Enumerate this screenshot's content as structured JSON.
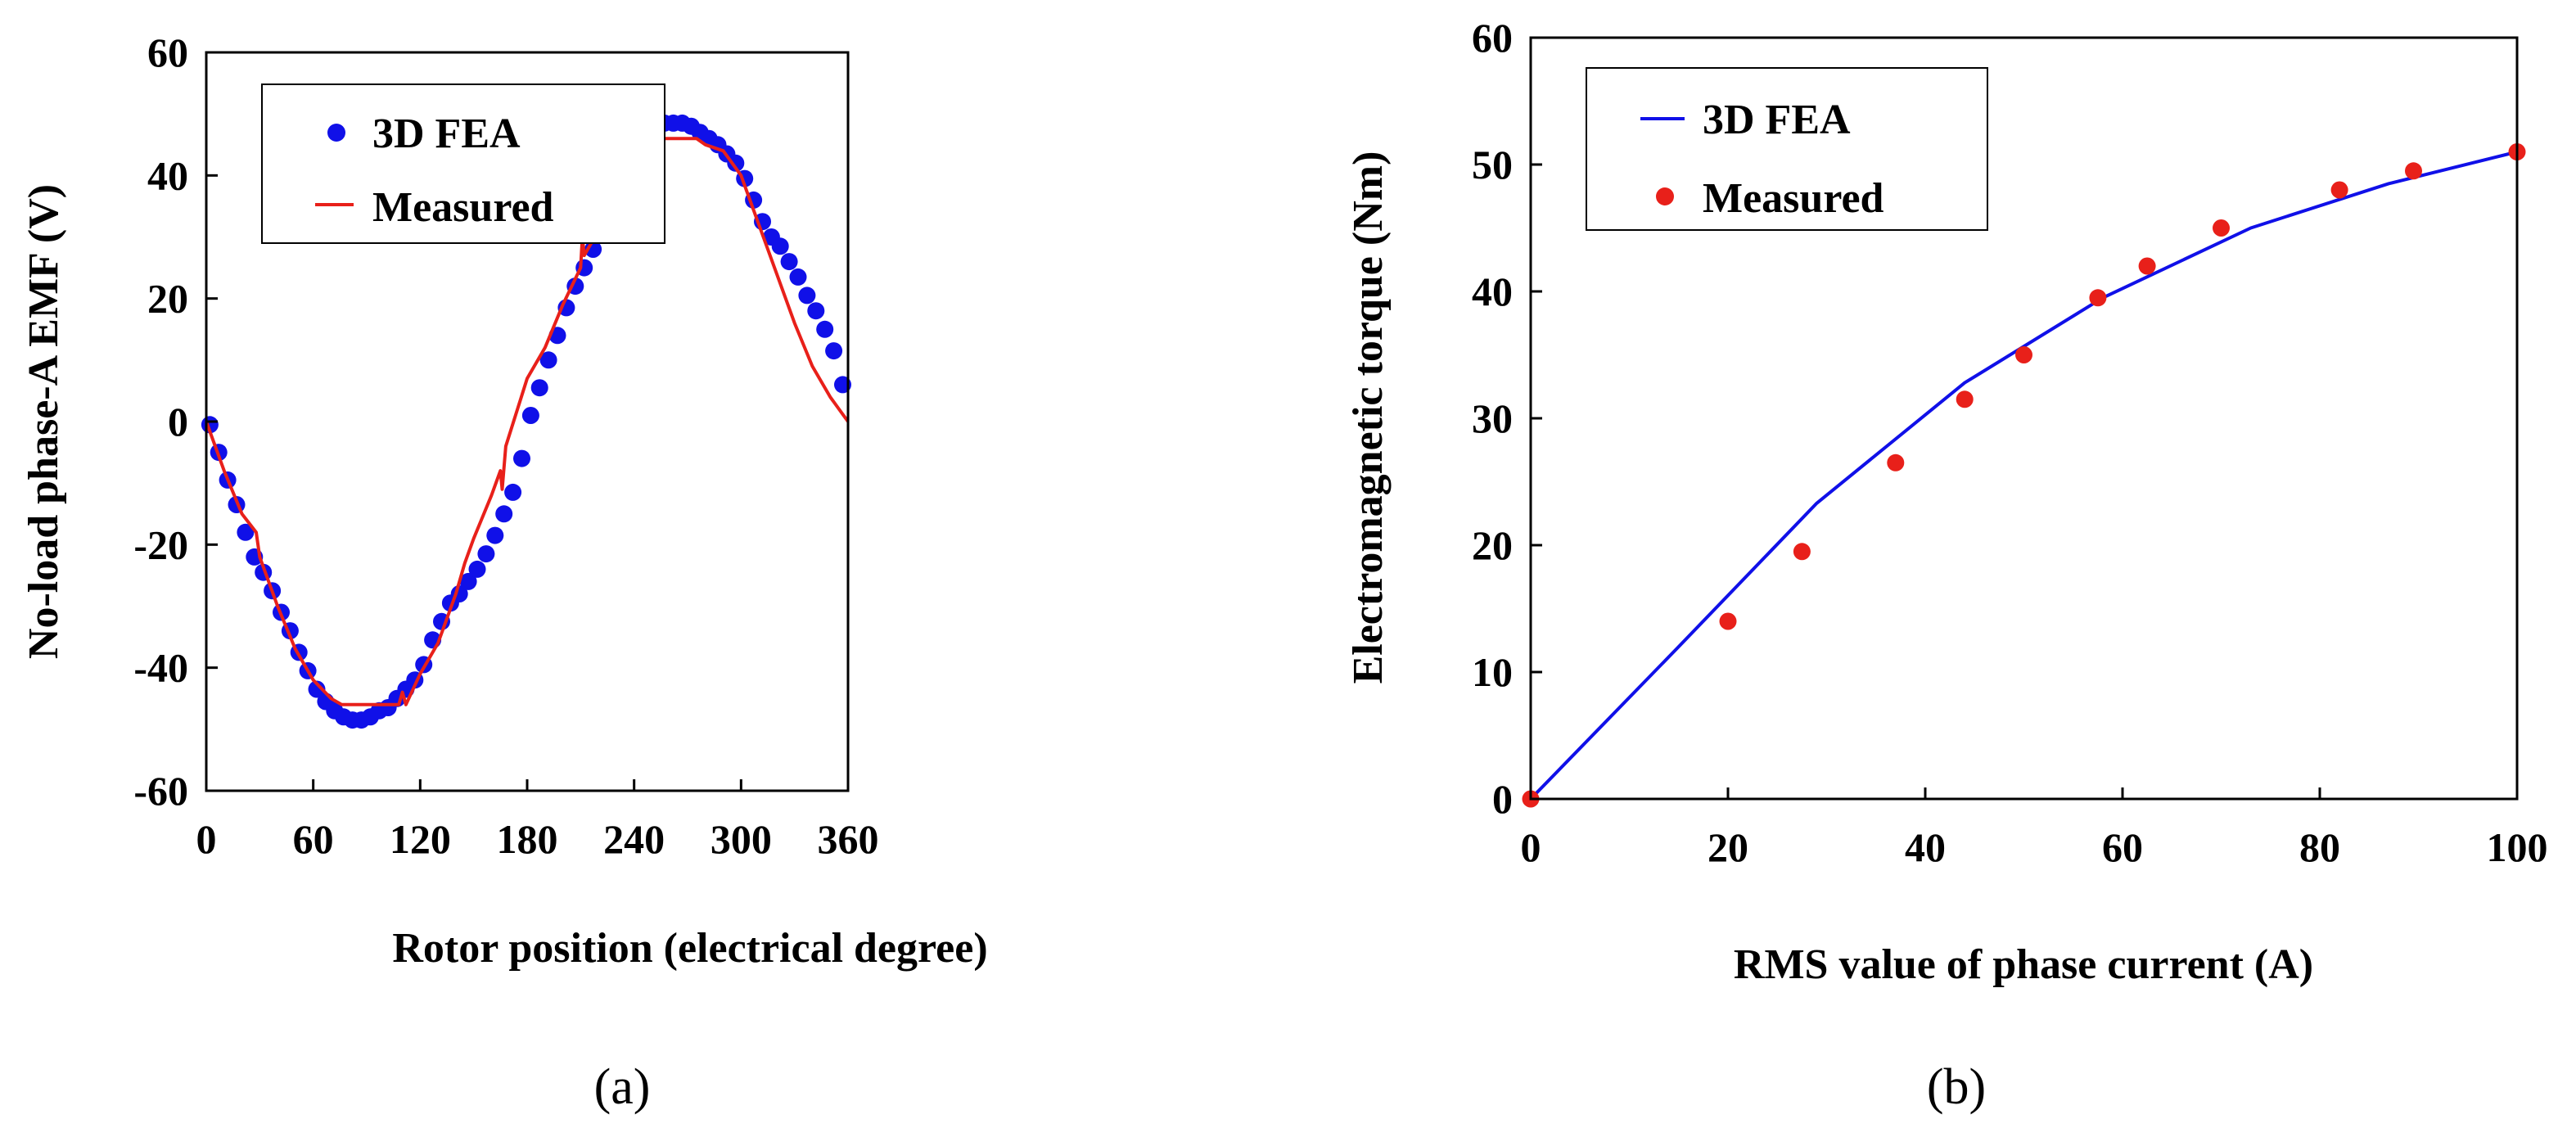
{
  "chart_data": [
    {
      "type": "line",
      "panel_label": "(a)",
      "xlabel": "Rotor position (electrical degree)",
      "ylabel": "No-load phase-A EMF (V)",
      "xlim": [
        0,
        360
      ],
      "ylim": [
        -60,
        60
      ],
      "xticks": [
        0,
        60,
        120,
        180,
        240,
        300,
        360
      ],
      "xtick_labels": [
        "0",
        "60",
        "120",
        "180",
        "240",
        "300",
        "360"
      ],
      "yticks": [
        -60,
        -40,
        -20,
        0,
        20,
        40,
        60
      ],
      "ytick_labels": [
        "-60",
        "-40",
        "-20",
        "0",
        "20",
        "40",
        "60"
      ],
      "grid": false,
      "legend_position": "top-left",
      "series": [
        {
          "name": "3D FEA",
          "style": "markers",
          "color": "#1010E8",
          "x": [
            2,
            7,
            12,
            17,
            22,
            27,
            32,
            37,
            42,
            47,
            52,
            57,
            62,
            67,
            72,
            77,
            82,
            87,
            92,
            97,
            102,
            107,
            112,
            117,
            122,
            127,
            132,
            137,
            142,
            147,
            152,
            157,
            162,
            167,
            172,
            177,
            182,
            187,
            192,
            197,
            202,
            207,
            212,
            217,
            222,
            227,
            232,
            237,
            242,
            247,
            252,
            257,
            262,
            267,
            272,
            277,
            282,
            287,
            292,
            297,
            302,
            307,
            312,
            317,
            322,
            327,
            332,
            337,
            342,
            347,
            352,
            357
          ],
          "y": [
            -0.5,
            -5,
            -9.5,
            -13.5,
            -18,
            -22,
            -24.5,
            -27.5,
            -31,
            -34,
            -37.5,
            -40.5,
            -43.5,
            -45.5,
            -47,
            -48,
            -48.5,
            -48.5,
            -48,
            -47,
            -46.5,
            -45,
            -43.5,
            -42,
            -39.5,
            -35.5,
            -32.5,
            -29.5,
            -28,
            -26,
            -24,
            -21.5,
            -18.5,
            -15,
            -11.5,
            -6,
            1,
            5.5,
            10,
            14,
            18.5,
            22,
            25,
            28,
            31,
            34.5,
            37.5,
            40.5,
            43.5,
            45.5,
            47,
            48.5,
            48.5,
            48.5,
            48,
            47,
            46,
            45,
            43.5,
            42,
            39.5,
            36,
            32.5,
            30,
            28.5,
            26,
            23.5,
            20.5,
            18,
            15,
            11.5,
            6
          ]
        },
        {
          "name": "Measured",
          "style": "line",
          "color": "#E8201A",
          "x": [
            0,
            10,
            20,
            28,
            30,
            40,
            50,
            60,
            70,
            76,
            80,
            90,
            100,
            108,
            110,
            112,
            120,
            130,
            140,
            145,
            150,
            160,
            165,
            166,
            168,
            180,
            190,
            200,
            210,
            211,
            212,
            214,
            220,
            230,
            240,
            245,
            250,
            255,
            260,
            265,
            270,
            275,
            280,
            290,
            300,
            305,
            310,
            320,
            330,
            340,
            350,
            355,
            360
          ],
          "y": [
            0,
            -8,
            -15,
            -18,
            -22,
            -30,
            -37,
            -42,
            -45,
            -46,
            -46,
            -46,
            -46,
            -46,
            -44,
            -46,
            -41,
            -36,
            -28,
            -23,
            -19,
            -12,
            -8,
            -11,
            -4,
            7,
            12,
            19,
            25,
            30,
            27,
            28,
            31,
            36,
            41,
            43,
            45,
            46,
            46,
            46,
            46,
            46,
            45,
            44,
            40,
            36,
            32,
            24,
            16,
            9,
            4,
            2,
            0
          ]
        }
      ]
    },
    {
      "type": "line",
      "panel_label": "(b)",
      "xlabel": "RMS value of phase current (A)",
      "ylabel": "Electromagnetic torque (Nm)",
      "xlim": [
        0,
        100
      ],
      "ylim": [
        0,
        60
      ],
      "xticks": [
        0,
        20,
        40,
        60,
        80,
        100
      ],
      "xtick_labels": [
        "0",
        "20",
        "40",
        "60",
        "80",
        "100"
      ],
      "yticks": [
        0,
        10,
        20,
        30,
        40,
        50,
        60
      ],
      "ytick_labels": [
        "0",
        "10",
        "20",
        "30",
        "40",
        "50",
        "60"
      ],
      "grid": false,
      "legend_position": "top-left",
      "series": [
        {
          "name": "3D FEA",
          "style": "line",
          "color": "#1010E8",
          "x": [
            0,
            15,
            29,
            44,
            58,
            73,
            87,
            100
          ],
          "y": [
            0,
            12,
            23.3,
            32.8,
            39.5,
            45,
            48.5,
            51
          ]
        },
        {
          "name": "Measured",
          "style": "markers",
          "color": "#E8201A",
          "x": [
            0,
            20,
            27.5,
            37,
            44,
            50,
            57.5,
            62.5,
            70,
            82,
            89.5,
            100
          ],
          "y": [
            0,
            14,
            19.5,
            26.5,
            31.5,
            35,
            39.5,
            42,
            45,
            48,
            49.5,
            51
          ]
        }
      ]
    }
  ]
}
